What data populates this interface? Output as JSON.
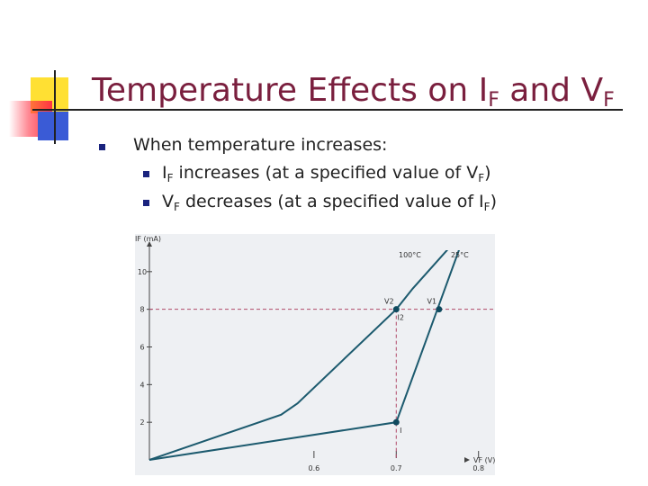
{
  "slide": {
    "title": {
      "main": "Temperature Effects on I",
      "sub1": "F",
      "mid": " and V",
      "sub2": "F"
    },
    "bullets": [
      {
        "text": "When temperature increases:"
      },
      {
        "pre": "I",
        "sub1": "F",
        "mid": " increases (at a specified value of V",
        "sub2": "F",
        "post": ")"
      },
      {
        "pre": "V",
        "sub1": "F",
        "mid": " decreases (at a specified value of I",
        "sub2": "F",
        "post": ")"
      }
    ]
  },
  "chart_data": {
    "type": "line",
    "ylabel": "IF (mA)",
    "xlabel": "VF (V)",
    "xlim": [
      0.4,
      0.82
    ],
    "ylim": [
      0,
      12
    ],
    "x_ticks": [
      "0.6",
      "0.7",
      "0.8"
    ],
    "y_ticks": [
      "2",
      "4",
      "6",
      "8",
      "10"
    ],
    "series": [
      {
        "name": "100°C",
        "points": [
          [
            0.4,
            0
          ],
          [
            0.56,
            2.4
          ],
          [
            0.58,
            3.0
          ],
          [
            0.7,
            8.0
          ],
          [
            0.72,
            9.1
          ],
          [
            0.81,
            13.5
          ]
        ]
      },
      {
        "name": "25°C",
        "points": [
          [
            0.4,
            0
          ],
          [
            0.7,
            2.0
          ],
          [
            0.75,
            8.0
          ],
          [
            0.81,
            15.2
          ]
        ]
      }
    ],
    "markers": [
      {
        "label": "V2",
        "x": 0.7,
        "y": 8.0
      },
      {
        "label": "V1",
        "x": 0.752,
        "y": 8.0
      },
      {
        "label": "I2",
        "x": 0.7,
        "y": 8.0
      },
      {
        "label": "I",
        "x": 0.7,
        "y": 2.0
      }
    ],
    "reference_line_y": 8
  }
}
